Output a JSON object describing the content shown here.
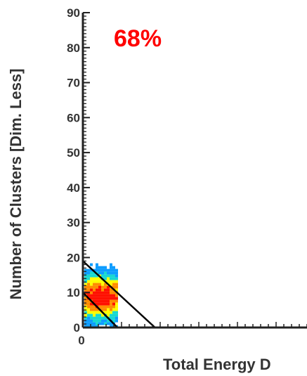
{
  "chart_data": {
    "type": "heatmap",
    "title": "",
    "xlabel": "Total Energy D",
    "ylabel": "Number of Clusters [Dim. Less]",
    "annotation": "68%",
    "ylim": [
      0,
      90
    ],
    "yticks": [
      0,
      10,
      20,
      30,
      40,
      50,
      60,
      70,
      80,
      90
    ],
    "xtick_labels_visible": [
      "0"
    ],
    "grid": false,
    "colormap": [
      "#0c9cff",
      "#18d8d0",
      "#ffff00",
      "#ff8c00",
      "#ff1000"
    ],
    "density_blob": {
      "description_level_counts": [
        0.06,
        0.16,
        0.32,
        0.55,
        0.85
      ],
      "peak": {
        "x_fraction_of_visible_axis": 0.11,
        "y": 9
      },
      "y_extent": [
        1,
        27
      ],
      "x_extent_fraction": [
        0.005,
        0.22
      ]
    },
    "lines": [
      {
        "name": "upper-boundary",
        "from": {
          "xf": 0.0,
          "y": 19
        },
        "to": {
          "xf": 0.48,
          "y": 0
        }
      },
      {
        "name": "lower-boundary",
        "from": {
          "xf": 0.0,
          "y": 10
        },
        "to": {
          "xf": 0.23,
          "y": 0
        }
      }
    ]
  },
  "colors": {
    "axis": "#222222",
    "tick_label": "#333333",
    "annotation": "#ff0000",
    "line": "#000000"
  }
}
